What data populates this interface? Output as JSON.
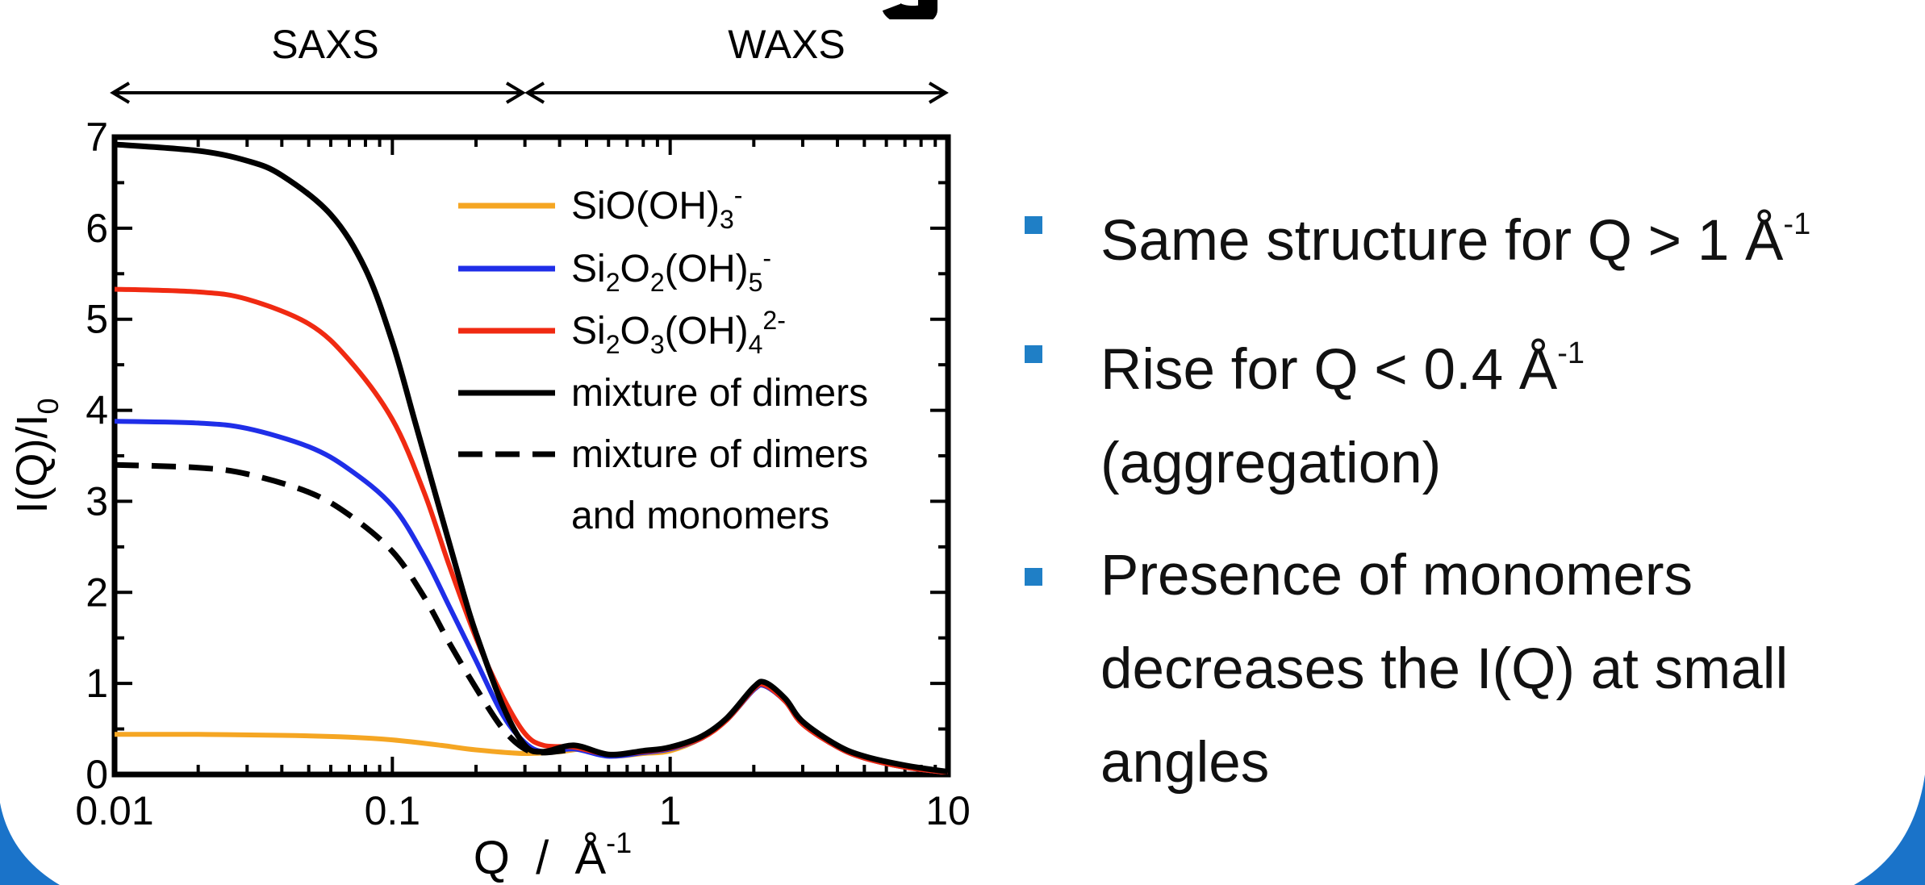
{
  "slide": {
    "top_labels": {
      "left": "SAXS",
      "right": "WAXS"
    },
    "bullets": [
      {
        "text": "Same structure for Q > 1 Å",
        "superscript": "-1"
      },
      {
        "text": "Rise for Q < 0.4 Å",
        "superscript": "-1",
        "text_after": "(aggregation)"
      },
      {
        "text": "Presence of monomers\ndecreases the I(Q) at small\nangles",
        "superscript": ""
      }
    ],
    "colors": {
      "bullet_marker": "#1f7fc6",
      "frame": "#1a73c9"
    }
  },
  "chart_data": {
    "type": "line",
    "x_scale": "log",
    "xlim": [
      0.01,
      10
    ],
    "ylim": [
      0,
      7
    ],
    "xticks": [
      "0.01",
      "0.1",
      "1",
      "10"
    ],
    "yticks": [
      "0",
      "1",
      "2",
      "3",
      "4",
      "5",
      "6",
      "7"
    ],
    "xlabel": "Q  /  Å",
    "xlabel_sup": "-1",
    "ylabel": "I(Q)/I",
    "ylabel_sub": "0",
    "legend_position": "top-right",
    "series": [
      {
        "name": "SiO(OH)3-",
        "legend_parts": [
          [
            "SiO(OH)",
            ""
          ],
          [
            "3",
            "sub"
          ],
          [
            "-",
            "sup"
          ]
        ],
        "color": "#f5a623",
        "dashed": false,
        "x": [
          0.01,
          0.02,
          0.04,
          0.07,
          0.1,
          0.15,
          0.2,
          0.3,
          0.4,
          0.5,
          0.6,
          0.8,
          1.0,
          1.3,
          1.6,
          2.0,
          2.2,
          2.6,
          3.0,
          4.0,
          5.0,
          7.0,
          10.0
        ],
        "y": [
          0.44,
          0.44,
          0.43,
          0.41,
          0.38,
          0.32,
          0.27,
          0.23,
          0.25,
          0.28,
          0.2,
          0.23,
          0.26,
          0.4,
          0.6,
          0.93,
          0.97,
          0.8,
          0.55,
          0.3,
          0.18,
          0.08,
          0.02
        ]
      },
      {
        "name": "Si2O2(OH)5-",
        "legend_parts": [
          [
            "Si",
            ""
          ],
          [
            "2",
            "sub"
          ],
          [
            "O",
            ""
          ],
          [
            "2",
            "sub"
          ],
          [
            "(OH)",
            ""
          ],
          [
            "5",
            "sub"
          ],
          [
            "-",
            "sup"
          ]
        ],
        "color": "#1f2ee8",
        "dashed": false,
        "x": [
          0.01,
          0.02,
          0.03,
          0.05,
          0.07,
          0.1,
          0.13,
          0.16,
          0.2,
          0.25,
          0.3,
          0.35,
          0.45,
          0.6,
          0.8,
          1.0,
          1.3,
          1.6,
          2.0,
          2.2,
          2.6,
          3.0,
          4.0,
          5.0,
          7.0,
          10.0
        ],
        "y": [
          3.88,
          3.86,
          3.8,
          3.6,
          3.35,
          2.95,
          2.4,
          1.85,
          1.25,
          0.65,
          0.35,
          0.25,
          0.28,
          0.2,
          0.24,
          0.28,
          0.4,
          0.6,
          0.93,
          0.97,
          0.8,
          0.55,
          0.3,
          0.18,
          0.08,
          0.02
        ]
      },
      {
        "name": "Si2O3(OH)42-",
        "legend_parts": [
          [
            "Si",
            ""
          ],
          [
            "2",
            "sub"
          ],
          [
            "O",
            ""
          ],
          [
            "3",
            "sub"
          ],
          [
            "(OH)",
            ""
          ],
          [
            "4",
            "sub"
          ],
          [
            "2-",
            "sup"
          ]
        ],
        "color": "#f02a12",
        "dashed": false,
        "x": [
          0.01,
          0.02,
          0.03,
          0.05,
          0.07,
          0.1,
          0.13,
          0.16,
          0.2,
          0.25,
          0.3,
          0.35,
          0.45,
          0.6,
          0.8,
          1.0,
          1.3,
          1.6,
          2.0,
          2.2,
          2.6,
          3.0,
          4.0,
          5.0,
          7.0,
          10.0
        ],
        "y": [
          5.33,
          5.3,
          5.22,
          4.95,
          4.55,
          3.9,
          3.1,
          2.3,
          1.5,
          0.85,
          0.45,
          0.32,
          0.3,
          0.22,
          0.25,
          0.29,
          0.4,
          0.6,
          0.94,
          0.98,
          0.8,
          0.55,
          0.3,
          0.18,
          0.08,
          0.02
        ]
      },
      {
        "name": "mixture of dimers",
        "legend_parts": [
          [
            "mixture of dimers",
            ""
          ]
        ],
        "color": "#000000",
        "dashed": false,
        "x": [
          0.01,
          0.02,
          0.03,
          0.04,
          0.06,
          0.08,
          0.1,
          0.12,
          0.15,
          0.18,
          0.2,
          0.25,
          0.3,
          0.35,
          0.45,
          0.6,
          0.8,
          1.0,
          1.3,
          1.6,
          2.0,
          2.2,
          2.6,
          3.0,
          4.0,
          5.0,
          7.0,
          10.0
        ],
        "y": [
          6.92,
          6.85,
          6.74,
          6.58,
          6.15,
          5.55,
          4.75,
          3.9,
          2.85,
          2.0,
          1.55,
          0.75,
          0.32,
          0.25,
          0.32,
          0.22,
          0.26,
          0.3,
          0.42,
          0.62,
          0.96,
          1.01,
          0.83,
          0.58,
          0.32,
          0.2,
          0.1,
          0.03
        ]
      },
      {
        "name": "mixture of dimers and monomers",
        "legend_parts": [
          [
            "mixture of dimers",
            ""
          ]
        ],
        "legend_parts_line2": [
          [
            "and monomers",
            ""
          ]
        ],
        "color": "#000000",
        "dashed": true,
        "x": [
          0.01,
          0.02,
          0.03,
          0.05,
          0.07,
          0.1,
          0.13,
          0.16,
          0.2,
          0.25,
          0.3,
          0.35,
          0.45
        ],
        "y": [
          3.4,
          3.37,
          3.3,
          3.1,
          2.85,
          2.45,
          1.95,
          1.45,
          0.95,
          0.5,
          0.28,
          0.24,
          0.28
        ]
      }
    ]
  }
}
